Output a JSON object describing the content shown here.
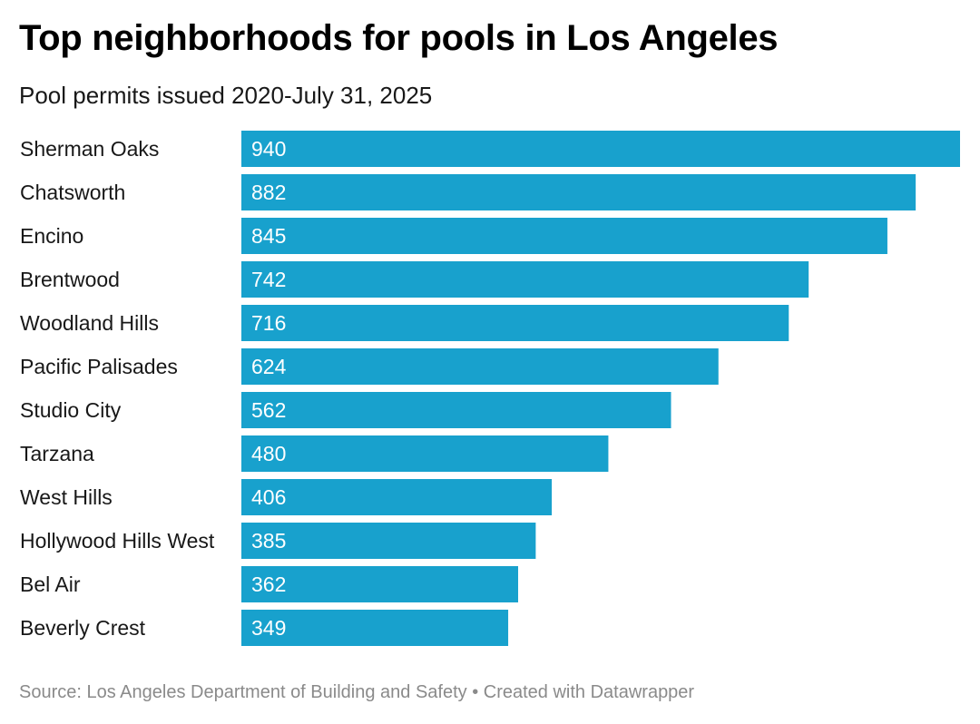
{
  "header": {
    "title": "Top neighborhoods for pools in Los Angeles",
    "subtitle": "Pool permits issued 2020-July 31, 2025"
  },
  "footer": {
    "source": "Source: Los Angeles Department of Building and Safety • Created with Datawrapper"
  },
  "colors": {
    "bar": "#18a1cd",
    "value_label": "#ffffff"
  },
  "chart_data": {
    "type": "bar",
    "orientation": "horizontal",
    "title": "Top neighborhoods for pools in Los Angeles",
    "subtitle": "Pool permits issued 2020-July 31, 2025",
    "xlabel": "",
    "ylabel": "",
    "grid": false,
    "legend": "none",
    "xlim": [
      0,
      940
    ],
    "categories": [
      "Sherman Oaks",
      "Chatsworth",
      "Encino",
      "Brentwood",
      "Woodland Hills",
      "Pacific Palisades",
      "Studio City",
      "Tarzana",
      "West Hills",
      "Hollywood Hills West",
      "Bel Air",
      "Beverly Crest"
    ],
    "values": [
      940,
      882,
      845,
      742,
      716,
      624,
      562,
      480,
      406,
      385,
      362,
      349
    ]
  }
}
